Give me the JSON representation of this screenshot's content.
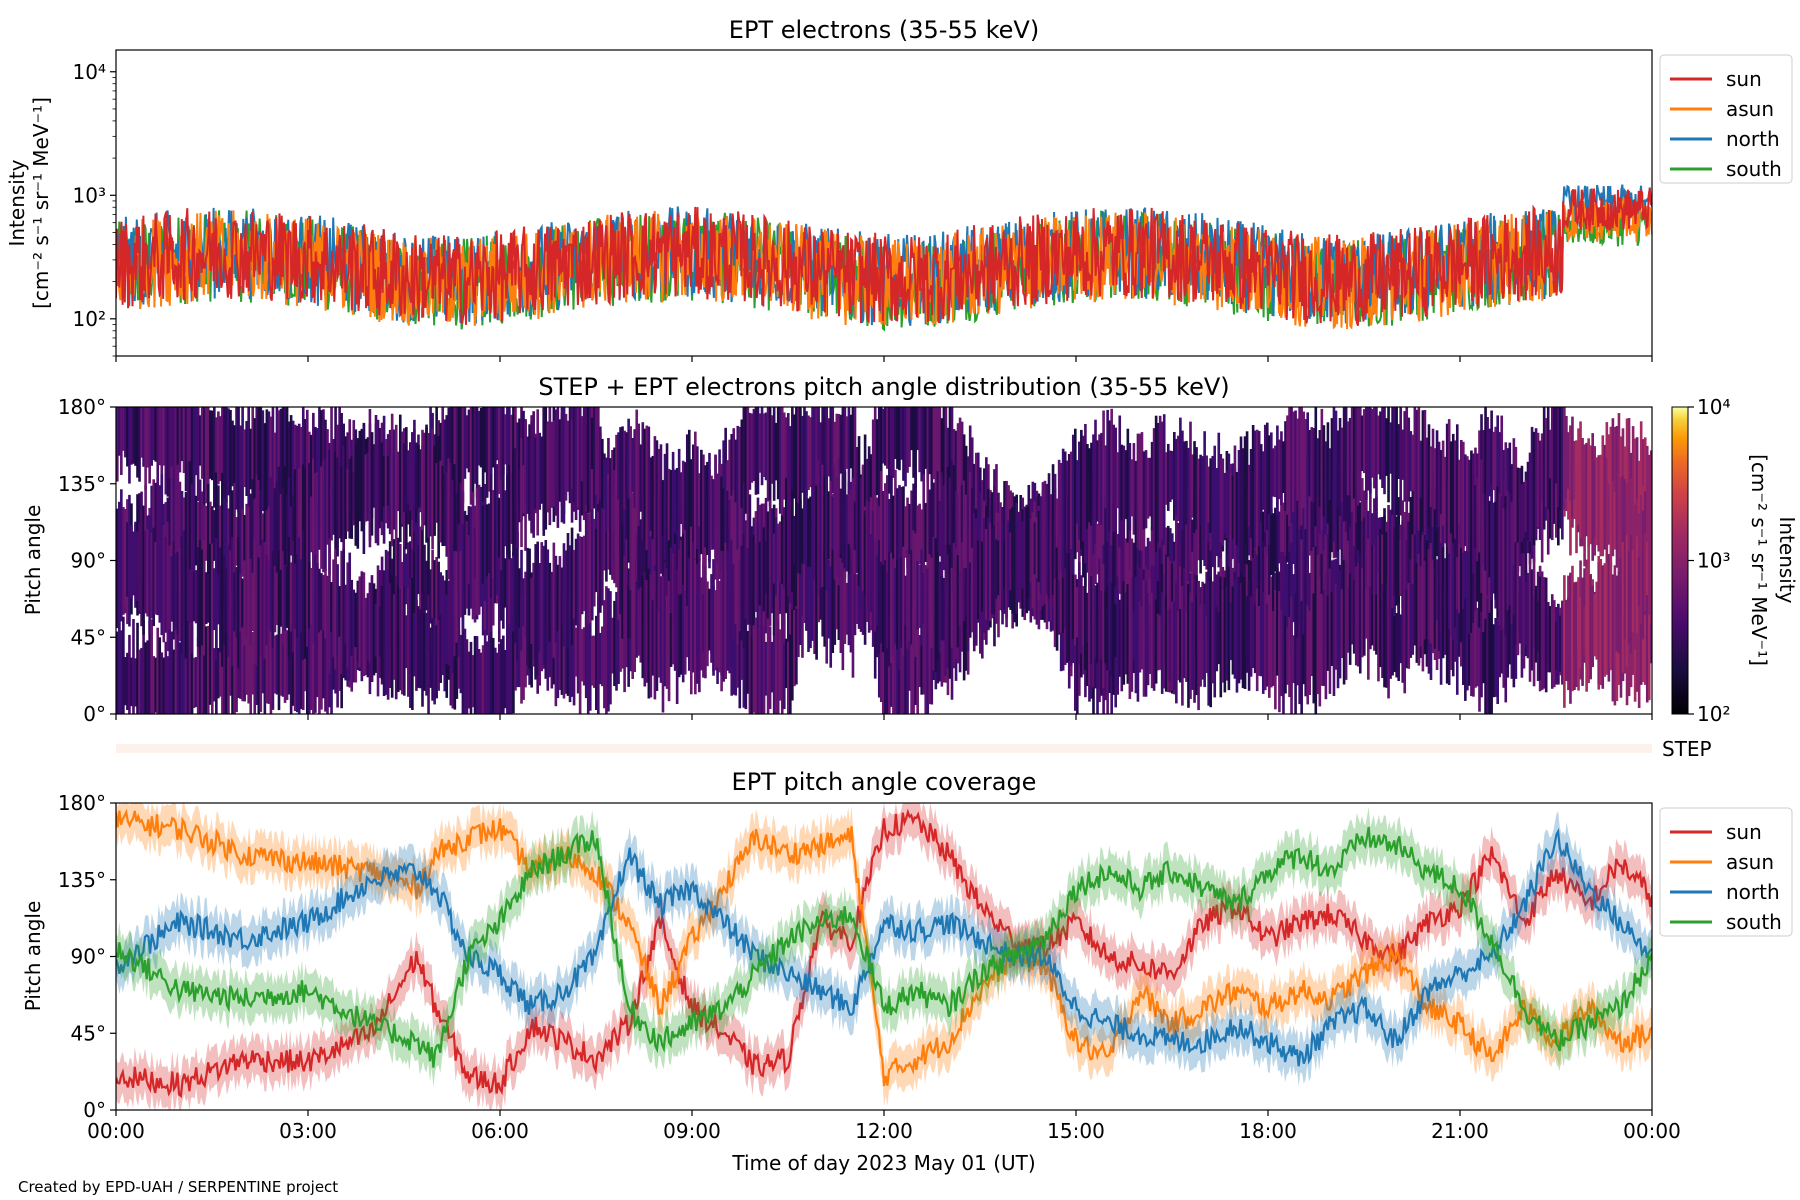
{
  "colors": {
    "sun": "#d62728",
    "asun": "#ff7f0e",
    "north": "#1f77b4",
    "south": "#2ca02c"
  },
  "chart_data": [
    {
      "type": "line",
      "title": "EPT electrons (35-55 keV)",
      "ylabel": "Intensity",
      "ylabel_unit": "[cm⁻² s⁻¹ sr⁻¹ MeV⁻¹]",
      "yscale": "log",
      "ylim": [
        50,
        15000
      ],
      "yticks": [
        {
          "value": 100,
          "label": "10²"
        },
        {
          "value": 1000,
          "label": "10³"
        },
        {
          "value": 10000,
          "label": "10⁴"
        }
      ],
      "xlim_hours": [
        0,
        24
      ],
      "legend_position": "outside-right",
      "series": [
        {
          "name": "sun",
          "color": "#d62728",
          "approx_baseline": 300,
          "x_end_hours": 24,
          "late_level": 800
        },
        {
          "name": "asun",
          "color": "#ff7f0e",
          "approx_baseline": 280,
          "x_end_hours": 24,
          "late_level": 650
        },
        {
          "name": "north",
          "color": "#1f77b4",
          "approx_baseline": 300,
          "x_end_hours": 24,
          "late_level": 850
        },
        {
          "name": "south",
          "color": "#2ca02c",
          "approx_baseline": 280,
          "x_end_hours": 24,
          "late_level": 600
        }
      ]
    },
    {
      "type": "heatmap",
      "title": "STEP + EPT electrons pitch angle distribution (35-55 keV)",
      "ylabel": "Pitch angle",
      "ylim": [
        0,
        180
      ],
      "yticks": [
        {
          "value": 0,
          "label": "0°"
        },
        {
          "value": 45,
          "label": "45°"
        },
        {
          "value": 90,
          "label": "90°"
        },
        {
          "value": 135,
          "label": "135°"
        },
        {
          "value": 180,
          "label": "180°"
        }
      ],
      "xlim_hours": [
        0,
        24
      ],
      "colorbar": {
        "label": "Intensity",
        "unit": "[cm⁻² s⁻¹ sr⁻¹ MeV⁻¹]",
        "scale": "log",
        "range": [
          100,
          10000
        ],
        "ticks": [
          {
            "value": 100,
            "label": "10²"
          },
          {
            "value": 1000,
            "label": "10³"
          },
          {
            "value": 10000,
            "label": "10⁴"
          }
        ],
        "colormap": "inferno"
      }
    },
    {
      "type": "bar",
      "label": "STEP",
      "note": "thin empty STEP strip"
    },
    {
      "type": "line",
      "title": "EPT pitch angle coverage",
      "ylabel": "Pitch angle",
      "xlabel": "Time of day 2023 May 01 (UT)",
      "ylim": [
        0,
        180
      ],
      "yticks": [
        {
          "value": 0,
          "label": "0°"
        },
        {
          "value": 45,
          "label": "45°"
        },
        {
          "value": 90,
          "label": "90°"
        },
        {
          "value": 135,
          "label": "135°"
        },
        {
          "value": 180,
          "label": "180°"
        }
      ],
      "xlim_hours": [
        0,
        24
      ],
      "xticks": [
        {
          "value": 0,
          "label": "00:00"
        },
        {
          "value": 3,
          "label": "03:00"
        },
        {
          "value": 6,
          "label": "06:00"
        },
        {
          "value": 9,
          "label": "09:00"
        },
        {
          "value": 12,
          "label": "12:00"
        },
        {
          "value": 15,
          "label": "15:00"
        },
        {
          "value": 18,
          "label": "18:00"
        },
        {
          "value": 21,
          "label": "21:00"
        },
        {
          "value": 24,
          "label": "00:00"
        }
      ],
      "legend_position": "outside-right",
      "series": [
        {
          "name": "sun",
          "color": "#d62728",
          "points": [
            [
              0,
              20
            ],
            [
              1,
              15
            ],
            [
              2,
              30
            ],
            [
              3,
              28
            ],
            [
              4,
              45
            ],
            [
              4.7,
              90
            ],
            [
              5,
              60
            ],
            [
              5.5,
              20
            ],
            [
              6,
              15
            ],
            [
              6.5,
              50
            ],
            [
              7,
              40
            ],
            [
              7.5,
              30
            ],
            [
              8,
              50
            ],
            [
              8.5,
              110
            ],
            [
              9,
              60
            ],
            [
              9.5,
              45
            ],
            [
              10,
              25
            ],
            [
              10.5,
              30
            ],
            [
              11,
              110
            ],
            [
              11.5,
              100
            ],
            [
              12,
              165
            ],
            [
              12.5,
              170
            ],
            [
              13,
              150
            ],
            [
              13.5,
              120
            ],
            [
              14,
              100
            ],
            [
              14.5,
              95
            ],
            [
              15,
              110
            ],
            [
              15.5,
              90
            ],
            [
              16,
              85
            ],
            [
              16.5,
              80
            ],
            [
              17,
              110
            ],
            [
              17.5,
              120
            ],
            [
              18,
              100
            ],
            [
              18.5,
              110
            ],
            [
              19,
              115
            ],
            [
              19.5,
              100
            ],
            [
              20,
              90
            ],
            [
              20.5,
              110
            ],
            [
              21,
              120
            ],
            [
              21.5,
              150
            ],
            [
              22,
              110
            ],
            [
              22.5,
              140
            ],
            [
              23,
              120
            ],
            [
              23.5,
              145
            ],
            [
              24,
              125
            ]
          ]
        },
        {
          "name": "asun",
          "color": "#ff7f0e",
          "points": [
            [
              0,
              170
            ],
            [
              1,
              165
            ],
            [
              2,
              150
            ],
            [
              3,
              145
            ],
            [
              4,
              140
            ],
            [
              4.7,
              130
            ],
            [
              5,
              150
            ],
            [
              5.5,
              160
            ],
            [
              6,
              165
            ],
            [
              6.5,
              140
            ],
            [
              7,
              150
            ],
            [
              7.5,
              140
            ],
            [
              8,
              110
            ],
            [
              8.5,
              60
            ],
            [
              9,
              100
            ],
            [
              9.5,
              130
            ],
            [
              10,
              160
            ],
            [
              10.5,
              150
            ],
            [
              11,
              155
            ],
            [
              11.5,
              160
            ],
            [
              12,
              20
            ],
            [
              12.5,
              30
            ],
            [
              13,
              40
            ],
            [
              13.5,
              70
            ],
            [
              14,
              90
            ],
            [
              14.5,
              85
            ],
            [
              15,
              40
            ],
            [
              15.5,
              30
            ],
            [
              16,
              70
            ],
            [
              16.5,
              50
            ],
            [
              17,
              60
            ],
            [
              17.5,
              70
            ],
            [
              18,
              60
            ],
            [
              18.5,
              70
            ],
            [
              19,
              65
            ],
            [
              19.5,
              80
            ],
            [
              20,
              90
            ],
            [
              20.5,
              60
            ],
            [
              21,
              50
            ],
            [
              21.5,
              30
            ],
            [
              22,
              60
            ],
            [
              22.5,
              40
            ],
            [
              23,
              60
            ],
            [
              23.5,
              40
            ],
            [
              24,
              45
            ]
          ]
        },
        {
          "name": "north",
          "color": "#1f77b4",
          "points": [
            [
              0,
              85
            ],
            [
              1,
              110
            ],
            [
              2,
              100
            ],
            [
              3,
              110
            ],
            [
              4,
              135
            ],
            [
              4.7,
              140
            ],
            [
              5,
              130
            ],
            [
              5.5,
              90
            ],
            [
              6,
              80
            ],
            [
              6.5,
              60
            ],
            [
              7,
              70
            ],
            [
              7.5,
              90
            ],
            [
              8,
              150
            ],
            [
              8.5,
              120
            ],
            [
              9,
              130
            ],
            [
              9.5,
              110
            ],
            [
              10,
              90
            ],
            [
              10.5,
              80
            ],
            [
              11,
              70
            ],
            [
              11.5,
              60
            ],
            [
              12,
              110
            ],
            [
              12.5,
              105
            ],
            [
              13,
              110
            ],
            [
              13.5,
              100
            ],
            [
              14,
              90
            ],
            [
              14.5,
              90
            ],
            [
              15,
              60
            ],
            [
              15.5,
              50
            ],
            [
              16,
              45
            ],
            [
              16.5,
              40
            ],
            [
              17,
              40
            ],
            [
              17.5,
              50
            ],
            [
              18,
              40
            ],
            [
              18.5,
              30
            ],
            [
              19,
              50
            ],
            [
              19.5,
              60
            ],
            [
              20,
              40
            ],
            [
              20.5,
              70
            ],
            [
              21,
              80
            ],
            [
              21.5,
              90
            ],
            [
              22,
              120
            ],
            [
              22.5,
              160
            ],
            [
              23,
              130
            ],
            [
              23.5,
              110
            ],
            [
              24,
              90
            ]
          ]
        },
        {
          "name": "south",
          "color": "#2ca02c",
          "points": [
            [
              0,
              95
            ],
            [
              1,
              70
            ],
            [
              2,
              65
            ],
            [
              3,
              70
            ],
            [
              4,
              50
            ],
            [
              4.7,
              40
            ],
            [
              5,
              30
            ],
            [
              5.5,
              90
            ],
            [
              6,
              110
            ],
            [
              6.5,
              140
            ],
            [
              7,
              150
            ],
            [
              7.5,
              160
            ],
            [
              8,
              60
            ],
            [
              8.5,
              40
            ],
            [
              9,
              50
            ],
            [
              9.5,
              60
            ],
            [
              10,
              80
            ],
            [
              10.5,
              100
            ],
            [
              11,
              110
            ],
            [
              11.5,
              115
            ],
            [
              12,
              60
            ],
            [
              12.5,
              70
            ],
            [
              13,
              60
            ],
            [
              13.5,
              80
            ],
            [
              14,
              90
            ],
            [
              14.5,
              100
            ],
            [
              15,
              130
            ],
            [
              15.5,
              140
            ],
            [
              16,
              130
            ],
            [
              16.5,
              140
            ],
            [
              17,
              130
            ],
            [
              17.5,
              120
            ],
            [
              18,
              140
            ],
            [
              18.5,
              150
            ],
            [
              19,
              140
            ],
            [
              19.5,
              160
            ],
            [
              20,
              155
            ],
            [
              20.5,
              140
            ],
            [
              21,
              130
            ],
            [
              21.5,
              100
            ],
            [
              22,
              60
            ],
            [
              22.5,
              40
            ],
            [
              23,
              50
            ],
            [
              23.5,
              60
            ],
            [
              24,
              90
            ]
          ]
        }
      ]
    }
  ],
  "footer": {
    "credit": "Created by EPD-UAH / SERPENTINE project"
  }
}
